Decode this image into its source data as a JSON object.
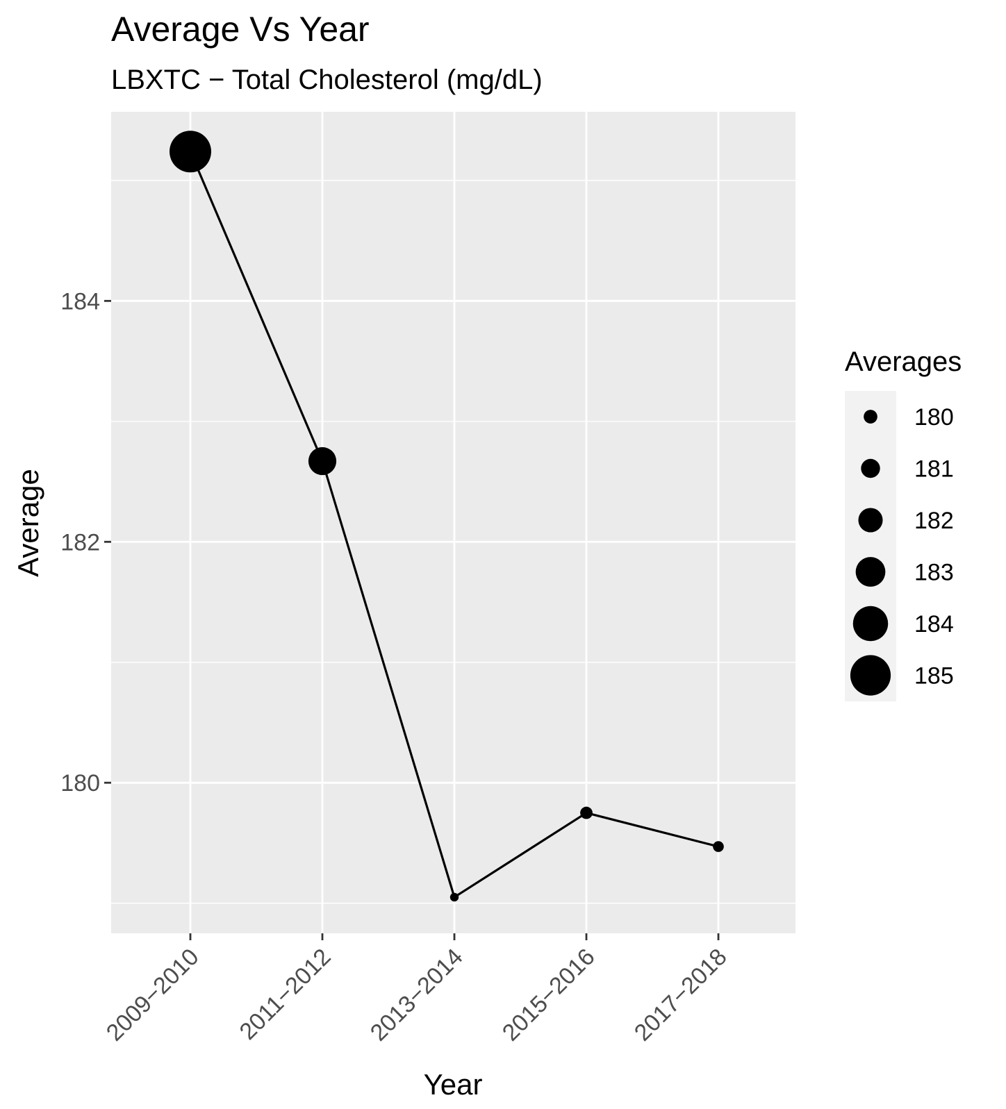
{
  "chart_data": {
    "type": "line",
    "title": "Average Vs Year",
    "subtitle": "LBXTC − Total Cholesterol (mg/dL)",
    "xlabel": "Year",
    "ylabel": "Average",
    "categories": [
      "2009−2010",
      "2011−2012",
      "2013−2014",
      "2015−2016",
      "2017−2018"
    ],
    "values": [
      185.24,
      182.67,
      179.05,
      179.75,
      179.47
    ],
    "ylim": [
      178.75,
      185.57
    ],
    "yticks": [
      180,
      182,
      184
    ],
    "grid": true,
    "point_size_encodes": "value",
    "legend": {
      "title": "Averages",
      "placement": "right",
      "entries": [
        180,
        181,
        182,
        183,
        184,
        185
      ]
    },
    "colors": {
      "panel_background": "#ebebeb",
      "grid": "#ffffff",
      "line": "#000000",
      "points": "#000000",
      "legend_key_background": "#f2f2f2"
    }
  }
}
